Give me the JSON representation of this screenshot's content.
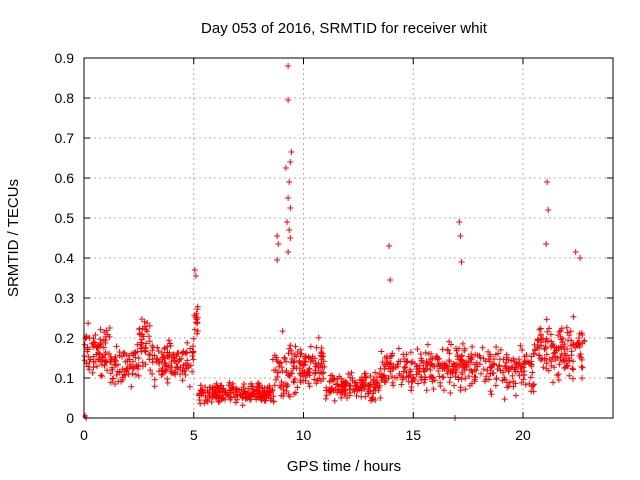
{
  "chart_data": {
    "type": "scatter",
    "title": "Day 053 of 2016, SRMTID for receiver whit",
    "xlabel": "GPS time / hours",
    "ylabel": "SRMTID / TECUs",
    "xlim": [
      0,
      24.1
    ],
    "ylim": [
      0,
      0.9
    ],
    "xticks": [
      0,
      5,
      10,
      15,
      20
    ],
    "yticks": [
      0,
      0.1,
      0.2,
      0.3,
      0.4,
      0.5,
      0.6,
      0.7,
      0.8,
      0.9
    ],
    "grid": true,
    "marker": "+",
    "series": [
      {
        "name": "SRMTID",
        "color": "#ff0000",
        "outliers": [
          {
            "x": 9.3,
            "y": 0.88
          },
          {
            "x": 9.3,
            "y": 0.795
          },
          {
            "x": 9.45,
            "y": 0.665
          },
          {
            "x": 9.4,
            "y": 0.64
          },
          {
            "x": 9.2,
            "y": 0.625
          },
          {
            "x": 9.35,
            "y": 0.59
          },
          {
            "x": 9.3,
            "y": 0.55
          },
          {
            "x": 9.4,
            "y": 0.525
          },
          {
            "x": 9.25,
            "y": 0.49
          },
          {
            "x": 9.35,
            "y": 0.47
          },
          {
            "x": 9.4,
            "y": 0.45
          },
          {
            "x": 9.3,
            "y": 0.415
          },
          {
            "x": 8.8,
            "y": 0.455
          },
          {
            "x": 8.85,
            "y": 0.435
          },
          {
            "x": 8.8,
            "y": 0.395
          },
          {
            "x": 13.9,
            "y": 0.43
          },
          {
            "x": 13.95,
            "y": 0.345
          },
          {
            "x": 17.1,
            "y": 0.49
          },
          {
            "x": 17.15,
            "y": 0.455
          },
          {
            "x": 17.2,
            "y": 0.39
          },
          {
            "x": 21.1,
            "y": 0.59
          },
          {
            "x": 21.15,
            "y": 0.52
          },
          {
            "x": 21.05,
            "y": 0.435
          },
          {
            "x": 22.4,
            "y": 0.415
          },
          {
            "x": 22.6,
            "y": 0.4
          },
          {
            "x": 5.05,
            "y": 0.37
          },
          {
            "x": 5.1,
            "y": 0.355
          },
          {
            "x": 0.05,
            "y": 0.005
          },
          {
            "x": 0.1,
            "y": 0.0
          },
          {
            "x": 16.9,
            "y": 0.0
          }
        ],
        "segments": [
          {
            "x_start": 0.0,
            "x_end": 1.2,
            "mean": 0.17,
            "spread": 0.09,
            "n": 75
          },
          {
            "x_start": 1.2,
            "x_end": 2.5,
            "mean": 0.13,
            "spread": 0.07,
            "n": 70
          },
          {
            "x_start": 2.5,
            "x_end": 3.0,
            "mean": 0.19,
            "spread": 0.09,
            "n": 35
          },
          {
            "x_start": 3.0,
            "x_end": 5.0,
            "mean": 0.14,
            "spread": 0.07,
            "n": 110
          },
          {
            "x_start": 5.0,
            "x_end": 5.2,
            "mean": 0.25,
            "spread": 0.08,
            "n": 14
          },
          {
            "x_start": 5.2,
            "x_end": 8.6,
            "mean": 0.06,
            "spread": 0.035,
            "n": 200
          },
          {
            "x_start": 8.6,
            "x_end": 9.6,
            "mean": 0.12,
            "spread": 0.12,
            "n": 60
          },
          {
            "x_start": 9.6,
            "x_end": 11.0,
            "mean": 0.13,
            "spread": 0.08,
            "n": 90
          },
          {
            "x_start": 11.0,
            "x_end": 13.5,
            "mean": 0.08,
            "spread": 0.045,
            "n": 150
          },
          {
            "x_start": 13.5,
            "x_end": 16.5,
            "mean": 0.12,
            "spread": 0.08,
            "n": 160
          },
          {
            "x_start": 16.5,
            "x_end": 18.5,
            "mean": 0.13,
            "spread": 0.09,
            "n": 110
          },
          {
            "x_start": 18.5,
            "x_end": 20.5,
            "mean": 0.12,
            "spread": 0.08,
            "n": 110
          },
          {
            "x_start": 20.5,
            "x_end": 21.8,
            "mean": 0.17,
            "spread": 0.1,
            "n": 80
          },
          {
            "x_start": 21.8,
            "x_end": 22.8,
            "mean": 0.17,
            "spread": 0.1,
            "n": 60
          }
        ]
      }
    ]
  }
}
